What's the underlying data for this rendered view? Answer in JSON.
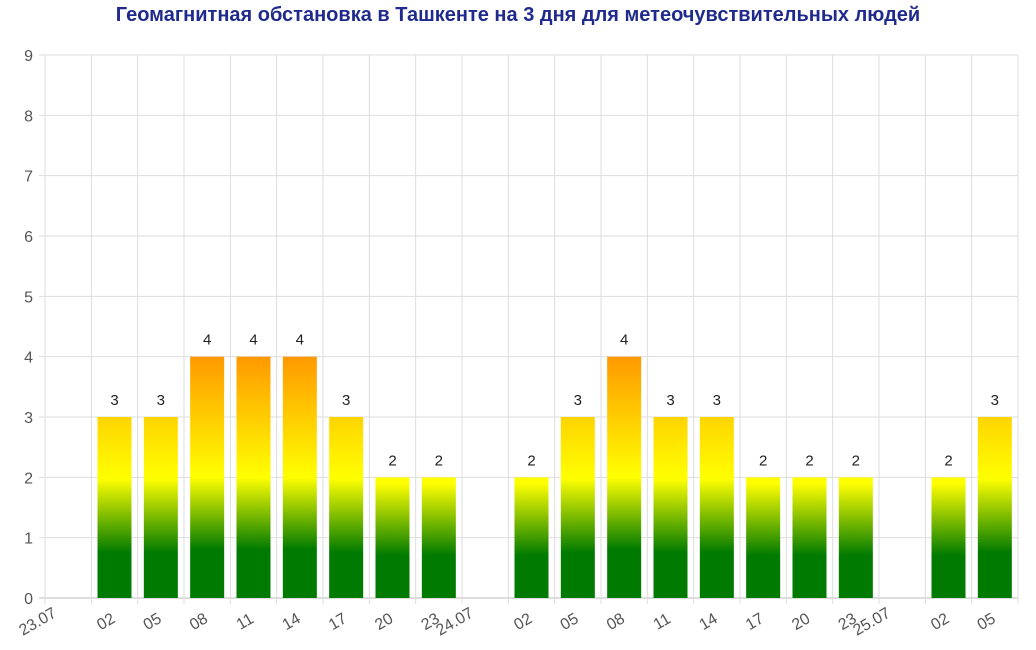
{
  "chart_data": {
    "type": "bar",
    "title": "Геомагнитная обстановка в Ташкенте на 3 дня для метеочувствительных людей",
    "xlabel": "",
    "ylabel": "",
    "ylim": [
      0,
      9
    ],
    "y_ticks": [
      "0",
      "1",
      "2",
      "3",
      "4",
      "5",
      "6",
      "7",
      "8",
      "9"
    ],
    "grid": true,
    "categories": [
      "23.07",
      "02",
      "05",
      "08",
      "11",
      "14",
      "17",
      "20",
      "23",
      "24.07",
      "02",
      "05",
      "08",
      "11",
      "14",
      "17",
      "20",
      "23",
      "25.07",
      "02",
      "05"
    ],
    "values": [
      null,
      3,
      3,
      4,
      4,
      4,
      3,
      2,
      2,
      null,
      2,
      3,
      4,
      3,
      3,
      2,
      2,
      2,
      null,
      2,
      3
    ],
    "colors": {
      "low": "#007a00",
      "mid": "#ffff00",
      "high": "#ff9900",
      "title": "#1f2a8c",
      "grid": "#dddddd"
    }
  }
}
